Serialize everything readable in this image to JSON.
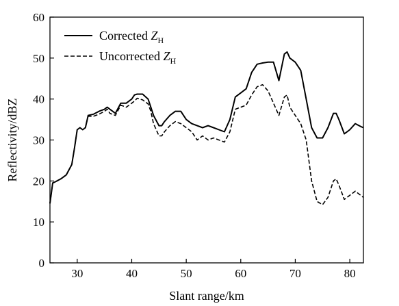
{
  "chart_data": {
    "type": "line",
    "xlabel": "Slant range/km",
    "ylabel": "Reflectivity/dBZ",
    "xlim": [
      25,
      82.5
    ],
    "ylim": [
      0,
      60
    ],
    "xticks": [
      30,
      40,
      50,
      60,
      70,
      80
    ],
    "yticks": [
      0,
      10,
      20,
      30,
      40,
      50,
      60
    ],
    "grid": false,
    "legend_position": "top-left",
    "series": [
      {
        "name": "Corrected",
        "symbol": "Z",
        "subscript": "H",
        "style": "solid",
        "color": "#000000",
        "x": [
          25,
          25.5,
          26,
          27,
          28,
          29,
          29.5,
          30,
          30.5,
          31,
          31.5,
          32,
          33,
          34,
          35,
          35.5,
          36,
          37,
          38,
          39,
          40,
          40.5,
          41,
          42,
          43,
          43.5,
          44,
          45,
          45.5,
          46,
          47,
          48,
          49,
          50,
          51,
          52,
          53,
          54,
          55,
          56,
          57,
          58,
          59,
          60,
          61,
          62,
          63,
          64,
          65,
          66,
          67,
          68,
          68.5,
          69,
          70,
          71,
          72,
          73,
          74,
          75,
          76,
          77,
          77.5,
          78,
          79,
          80,
          81,
          82,
          82.5
        ],
        "y": [
          14.5,
          19.5,
          19.8,
          20.5,
          21.5,
          24,
          28,
          32.5,
          33,
          32.5,
          33,
          36,
          36.3,
          37,
          37.5,
          38,
          37.5,
          36.5,
          39,
          39,
          40,
          41,
          41.2,
          41.2,
          40,
          38,
          36,
          33.5,
          33.5,
          34.5,
          36,
          37,
          37,
          35,
          34,
          33.5,
          33,
          33.5,
          33,
          32.5,
          32,
          35,
          40.5,
          41.5,
          42.5,
          46.5,
          48.5,
          48.8,
          49,
          49,
          44.5,
          51,
          51.5,
          50,
          49,
          47,
          40,
          33,
          30.5,
          30.5,
          33,
          36.5,
          36.5,
          35,
          31.5,
          32.5,
          34,
          33.3,
          33
        ]
      },
      {
        "name": "Uncorrected",
        "symbol": "Z",
        "subscript": "H",
        "style": "dashed",
        "color": "#000000",
        "x": [
          25,
          25.5,
          26,
          27,
          28,
          29,
          29.5,
          30,
          30.5,
          31,
          31.5,
          32,
          33,
          34,
          35,
          35.5,
          36,
          37,
          38,
          39,
          40,
          40.5,
          41,
          42,
          43,
          43.5,
          44,
          45,
          45.5,
          46,
          47,
          48,
          49,
          50,
          51,
          52,
          53,
          54,
          55,
          56,
          57,
          58,
          59,
          60,
          61,
          62,
          63,
          64,
          65,
          66,
          67,
          68,
          68.5,
          69,
          70,
          71,
          72,
          73,
          74,
          75,
          76,
          77,
          77.5,
          78,
          79,
          80,
          81,
          82,
          82.5
        ],
        "y": [
          14.5,
          19.5,
          19.8,
          20.5,
          21.5,
          24,
          28,
          32.5,
          33,
          32.5,
          33,
          35.8,
          35.8,
          36.3,
          37,
          37.5,
          36.5,
          36,
          38.5,
          38,
          39,
          39.5,
          40.2,
          39.8,
          38.8,
          37,
          34,
          31,
          31,
          32,
          33.5,
          34.5,
          34,
          33,
          32,
          30,
          31,
          30,
          30.5,
          30,
          29.5,
          32,
          37.5,
          38,
          38.5,
          41,
          43,
          43.5,
          42,
          39,
          36,
          40.5,
          41,
          38,
          36,
          34,
          30,
          20,
          15,
          14.2,
          16,
          20,
          20.5,
          19,
          15.5,
          16.5,
          17.5,
          16.5,
          16
        ]
      }
    ]
  }
}
